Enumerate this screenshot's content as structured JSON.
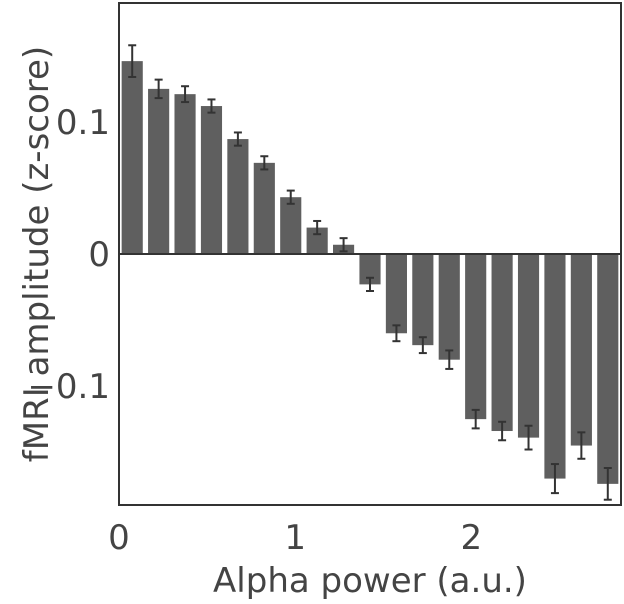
{
  "chart_data": {
    "type": "bar",
    "xlabel": "Alpha power (a.u.)",
    "ylabel": "fMRI amplitude (z-score)",
    "xlim": [
      0,
      2.85
    ],
    "ylim": [
      -0.19,
      0.19
    ],
    "xticks": [
      0,
      1,
      2
    ],
    "xtick_labels": [
      "0",
      "1",
      "2"
    ],
    "yticks": [
      0.1,
      0,
      -0.1
    ],
    "ytick_labels": [
      "0.1",
      "0",
      "−0.1"
    ],
    "bar_width": 0.12,
    "x": [
      0.075,
      0.225,
      0.375,
      0.525,
      0.675,
      0.825,
      0.975,
      1.125,
      1.275,
      1.425,
      1.575,
      1.725,
      1.875,
      2.025,
      2.175,
      2.325,
      2.475,
      2.625,
      2.775
    ],
    "values": [
      0.146,
      0.125,
      0.121,
      0.112,
      0.087,
      0.069,
      0.043,
      0.02,
      0.007,
      -0.023,
      -0.06,
      -0.069,
      -0.08,
      -0.125,
      -0.134,
      -0.139,
      -0.17,
      -0.145,
      -0.174
    ],
    "errors": [
      0.012,
      0.007,
      0.006,
      0.005,
      0.005,
      0.005,
      0.005,
      0.005,
      0.005,
      0.005,
      0.006,
      0.006,
      0.007,
      0.007,
      0.007,
      0.009,
      0.011,
      0.01,
      0.012
    ],
    "grid": false,
    "bar_color": "#5f5f5f",
    "errorbar_color": "#333333"
  }
}
